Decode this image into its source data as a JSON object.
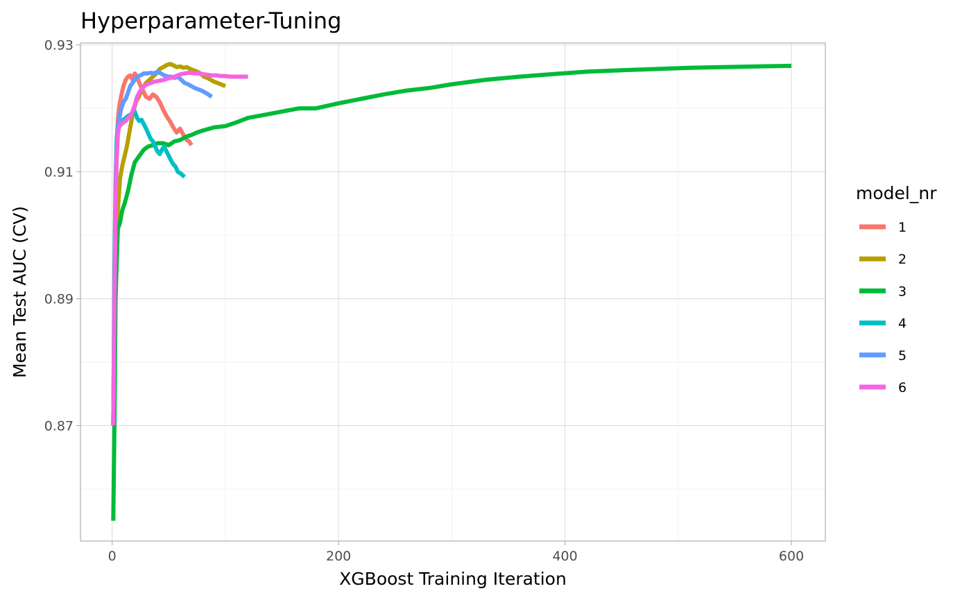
{
  "chart_data": {
    "type": "line",
    "title": "Hyperparameter-Tuning",
    "xlabel": "XGBoost Training Iteration",
    "ylabel": "Mean Test AUC (CV)",
    "xlim": [
      -28,
      630
    ],
    "ylim": [
      0.8518,
      0.9303
    ],
    "x_ticks": [
      0,
      200,
      400,
      600
    ],
    "x_tick_labels": [
      "0",
      "200",
      "400",
      "600"
    ],
    "y_ticks": [
      0.87,
      0.89,
      0.91,
      0.93
    ],
    "y_tick_labels": [
      "0.87",
      "0.89",
      "0.91",
      "0.93"
    ],
    "grid": true,
    "legend_title": "model_nr",
    "legend_position": "right",
    "series": [
      {
        "name": "1",
        "color": "#F8766D",
        "x": [
          1,
          2,
          3,
          4,
          5,
          6,
          8,
          10,
          12,
          14,
          16,
          18,
          20,
          22,
          24,
          26,
          28,
          30,
          33,
          36,
          39,
          42,
          45,
          48,
          51,
          54,
          57,
          60,
          63,
          66,
          68,
          70
        ],
        "y": [
          0.87,
          0.89,
          0.905,
          0.914,
          0.918,
          0.92,
          0.922,
          0.9235,
          0.9245,
          0.925,
          0.9252,
          0.9245,
          0.9255,
          0.925,
          0.924,
          0.9232,
          0.9225,
          0.9218,
          0.9215,
          0.9222,
          0.9218,
          0.921,
          0.9198,
          0.9188,
          0.918,
          0.917,
          0.9162,
          0.9168,
          0.9158,
          0.915,
          0.9148,
          0.9142
        ]
      },
      {
        "name": "2",
        "color": "#B79F00",
        "x": [
          1,
          3,
          5,
          7,
          9,
          11,
          13,
          15,
          18,
          21,
          24,
          27,
          30,
          33,
          36,
          39,
          42,
          45,
          48,
          51,
          54,
          57,
          60,
          63,
          66,
          69,
          72,
          75,
          78,
          81,
          84,
          87,
          90,
          93,
          96,
          100
        ],
        "y": [
          0.87,
          0.895,
          0.904,
          0.909,
          0.911,
          0.9125,
          0.914,
          0.916,
          0.919,
          0.921,
          0.922,
          0.9232,
          0.924,
          0.9245,
          0.925,
          0.9255,
          0.9262,
          0.9265,
          0.9268,
          0.927,
          0.9268,
          0.9265,
          0.9266,
          0.9264,
          0.9265,
          0.9262,
          0.926,
          0.9258,
          0.9255,
          0.925,
          0.9248,
          0.9245,
          0.9242,
          0.924,
          0.9238,
          0.9235
        ]
      },
      {
        "name": "3",
        "color": "#00BA38",
        "x": [
          1,
          2,
          3,
          5,
          7,
          9,
          11,
          14,
          17,
          20,
          24,
          28,
          32,
          36,
          40,
          45,
          50,
          55,
          60,
          65,
          70,
          75,
          80,
          90,
          100,
          110,
          120,
          135,
          150,
          165,
          180,
          200,
          220,
          240,
          260,
          280,
          300,
          330,
          360,
          390,
          420,
          450,
          480,
          510,
          540,
          570,
          600
        ],
        "y": [
          0.855,
          0.87,
          0.89,
          0.901,
          0.902,
          0.904,
          0.905,
          0.907,
          0.9095,
          0.9115,
          0.9125,
          0.9135,
          0.914,
          0.9142,
          0.9145,
          0.9145,
          0.9142,
          0.9148,
          0.915,
          0.9155,
          0.9158,
          0.9162,
          0.9165,
          0.917,
          0.9172,
          0.9178,
          0.9185,
          0.919,
          0.9195,
          0.92,
          0.92,
          0.9208,
          0.9215,
          0.9222,
          0.9228,
          0.9232,
          0.9238,
          0.9245,
          0.925,
          0.9254,
          0.9258,
          0.926,
          0.9262,
          0.9264,
          0.9265,
          0.9266,
          0.9267
        ]
      },
      {
        "name": "4",
        "color": "#00BFC4",
        "x": [
          1,
          2,
          3,
          4,
          5,
          6,
          8,
          10,
          12,
          14,
          16,
          18,
          20,
          22,
          24,
          26,
          28,
          30,
          32,
          34,
          36,
          38,
          40,
          42,
          44,
          46,
          48,
          50,
          52,
          54,
          56,
          58,
          60,
          62,
          64
        ],
        "y": [
          0.87,
          0.895,
          0.908,
          0.915,
          0.9172,
          0.9175,
          0.918,
          0.9182,
          0.9185,
          0.9188,
          0.919,
          0.9192,
          0.9195,
          0.9185,
          0.918,
          0.9182,
          0.9175,
          0.9168,
          0.916,
          0.9152,
          0.9148,
          0.914,
          0.9132,
          0.9128,
          0.9135,
          0.914,
          0.9132,
          0.9125,
          0.9118,
          0.9112,
          0.9108,
          0.91,
          0.9098,
          0.9095,
          0.9092
        ]
      },
      {
        "name": "5",
        "color": "#619CFF",
        "x": [
          1,
          2,
          3,
          4,
          5,
          6,
          7,
          8,
          10,
          12,
          14,
          16,
          18,
          20,
          22,
          25,
          28,
          31,
          34,
          37,
          40,
          43,
          46,
          49,
          52,
          55,
          58,
          61,
          64,
          67,
          70,
          73,
          76,
          79,
          82,
          85,
          88
        ],
        "y": [
          0.87,
          0.89,
          0.905,
          0.913,
          0.917,
          0.918,
          0.919,
          0.92,
          0.921,
          0.9215,
          0.9225,
          0.9235,
          0.924,
          0.9245,
          0.925,
          0.9252,
          0.9255,
          0.9255,
          0.9256,
          0.9255,
          0.9258,
          0.9255,
          0.9252,
          0.925,
          0.925,
          0.9248,
          0.925,
          0.9245,
          0.924,
          0.9238,
          0.9235,
          0.9232,
          0.923,
          0.9228,
          0.9225,
          0.9222,
          0.9218
        ]
      },
      {
        "name": "6",
        "color": "#F564E3",
        "x": [
          1,
          2,
          3,
          4,
          5,
          6,
          8,
          10,
          12,
          14,
          16,
          18,
          20,
          22,
          25,
          28,
          31,
          34,
          37,
          40,
          43,
          46,
          49,
          52,
          55,
          58,
          61,
          64,
          67,
          70,
          73,
          76,
          80,
          84,
          88,
          92,
          96,
          100,
          104,
          108,
          112,
          116,
          120
        ],
        "y": [
          0.87,
          0.89,
          0.905,
          0.912,
          0.916,
          0.917,
          0.9175,
          0.9178,
          0.918,
          0.9185,
          0.9188,
          0.9195,
          0.9205,
          0.9218,
          0.9228,
          0.9235,
          0.9238,
          0.924,
          0.9242,
          0.9243,
          0.9244,
          0.9245,
          0.9247,
          0.9248,
          0.925,
          0.9252,
          0.9254,
          0.9255,
          0.9256,
          0.9256,
          0.9255,
          0.9255,
          0.9254,
          0.9253,
          0.9252,
          0.9252,
          0.9251,
          0.9251,
          0.925,
          0.925,
          0.925,
          0.925,
          0.925
        ]
      }
    ]
  }
}
